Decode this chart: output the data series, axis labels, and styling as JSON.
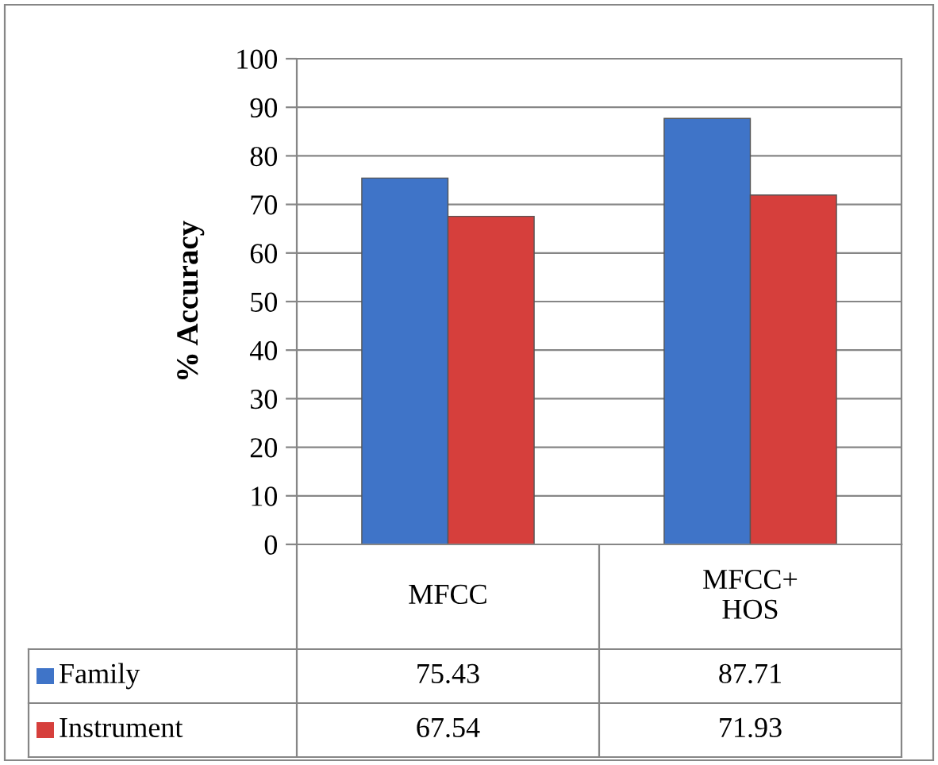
{
  "chart_data": {
    "type": "bar",
    "ylabel": "% Accuracy",
    "categories": [
      "MFCC",
      "MFCC+\nHOS"
    ],
    "series": [
      {
        "name": "Family",
        "color": "#3f74c8",
        "values": [
          75.43,
          87.71
        ]
      },
      {
        "name": "Instrument",
        "color": "#d63f3c",
        "values": [
          67.54,
          71.93
        ]
      }
    ],
    "ylim": [
      0,
      100
    ],
    "yticks": [
      0,
      10,
      20,
      30,
      40,
      50,
      60,
      70,
      80,
      90,
      100
    ],
    "grid": "y",
    "legend": "bottom",
    "data_labels": true
  }
}
